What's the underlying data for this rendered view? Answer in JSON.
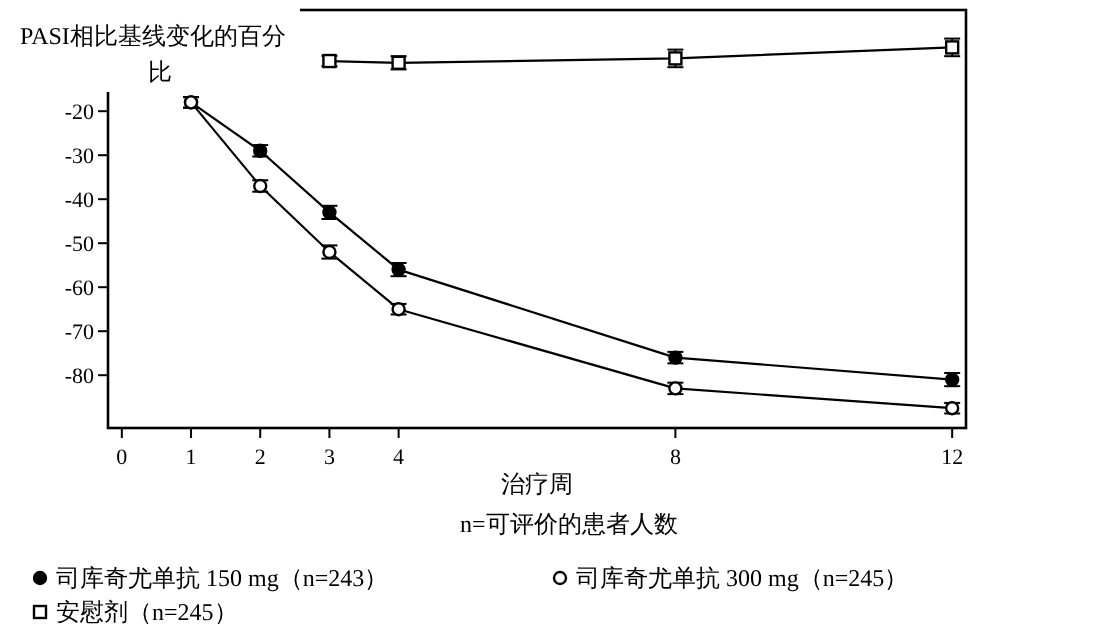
{
  "chart_data": {
    "type": "line",
    "ylabel": "PASI相比基线变化的百分比",
    "xlabel": "治疗周",
    "x": [
      1,
      2,
      3,
      4,
      8,
      12
    ],
    "xlim": [
      -0.2,
      12.2
    ],
    "xticks": [
      0,
      1,
      2,
      3,
      4,
      8,
      12
    ],
    "ylim": [
      -92,
      3
    ],
    "yticks": [
      -80,
      -70,
      -60,
      -50,
      -40,
      -30,
      -20
    ],
    "series": [
      {
        "name": "司库奇尤单抗 150 mg（n=243）",
        "color": "#000000",
        "marker": "circle",
        "values": [
          -18,
          -29,
          -43,
          -56,
          -76,
          -81
        ],
        "errors": [
          1.2,
          1.3,
          1.5,
          1.5,
          1.3,
          1.5
        ]
      },
      {
        "name": "司库奇尤单抗 300 mg（n=245）",
        "color": "#000000",
        "marker": "circle",
        "values": [
          -18,
          -37,
          -52,
          -65,
          -83,
          -87.5
        ],
        "errors": [
          1.2,
          1.3,
          1.5,
          1.2,
          1.3,
          1.2
        ]
      },
      {
        "name": "安慰剂（n=245）",
        "color": "#000000",
        "marker": "square",
        "values": [
          null,
          null,
          -8.6,
          -9,
          -8,
          -5.5
        ],
        "errors": [
          null,
          null,
          1.2,
          1.5,
          2,
          2
        ]
      }
    ],
    "annotations": [
      "n=可评价的患者人数"
    ],
    "legend": "bottom",
    "grid": false,
    "line_style": "solid"
  }
}
